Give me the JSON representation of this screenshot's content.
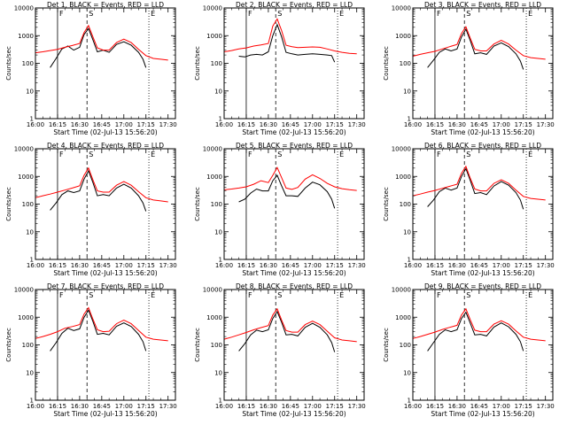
{
  "panel_title_suffix": ", BLACK = Events, RED = LLD",
  "x_label": "Start Time (02-Jul-13 15:56:20)",
  "y_label": "Counts/sec",
  "x_tick_labels": [
    "16:00",
    "16:15",
    "16:30",
    "16:45",
    "17:00",
    "17:15",
    "17:30"
  ],
  "y_tick_labels": [
    "1",
    "10",
    "100",
    "1000",
    "10000"
  ],
  "series_colors": {
    "events": "#000000",
    "lld": "#ff0000"
  },
  "chart_data": [
    {
      "type": "line",
      "title": "Det 1",
      "xlim": [
        "16:00",
        "17:35"
      ],
      "ylim": [
        1,
        10000
      ],
      "yscale": "log",
      "grid": false,
      "markers": {
        "F": "16:15",
        "S": "16:35",
        "E": "17:17"
      },
      "series": [
        {
          "x": [
            "16:10",
            "16:14",
            "16:18",
            "16:22",
            "16:26",
            "16:30",
            "16:33",
            "16:36",
            "16:39",
            "16:42",
            "16:46",
            "16:50",
            "16:55",
            "17:00",
            "17:05",
            "17:10",
            "17:13",
            "17:15"
          ],
          "values": [
            70,
            150,
            330,
            420,
            300,
            380,
            1100,
            1800,
            700,
            260,
            300,
            250,
            480,
            600,
            450,
            250,
            140,
            70
          ]
        },
        {
          "x": [
            "16:00",
            "16:05",
            "16:10",
            "16:15",
            "16:20",
            "16:25",
            "16:30",
            "16:33",
            "16:36",
            "16:39",
            "16:42",
            "16:46",
            "16:50",
            "16:55",
            "17:00",
            "17:05",
            "17:10",
            "17:15",
            "17:20",
            "17:25",
            "17:30"
          ],
          "values": [
            240,
            260,
            290,
            320,
            380,
            440,
            520,
            1300,
            2300,
            900,
            360,
            300,
            300,
            560,
            750,
            560,
            320,
            190,
            150,
            140,
            130
          ]
        }
      ]
    },
    {
      "type": "line",
      "title": "Det 2",
      "xlim": [
        "16:00",
        "17:35"
      ],
      "ylim": [
        1,
        10000
      ],
      "yscale": "log",
      "grid": false,
      "markers": {
        "F": "16:15",
        "S": "16:35",
        "E": "17:17"
      },
      "series": [
        {
          "x": [
            "16:10",
            "16:14",
            "16:18",
            "16:22",
            "16:26",
            "16:30",
            "16:33",
            "16:36",
            "16:39",
            "16:42",
            "16:46",
            "16:50",
            "16:55",
            "17:00",
            "17:05",
            "17:10",
            "17:13",
            "17:15"
          ],
          "values": [
            180,
            170,
            200,
            210,
            200,
            260,
            1000,
            2500,
            900,
            250,
            220,
            200,
            210,
            220,
            210,
            200,
            190,
            110
          ]
        },
        {
          "x": [
            "16:00",
            "16:05",
            "16:10",
            "16:15",
            "16:20",
            "16:25",
            "16:30",
            "16:33",
            "16:36",
            "16:39",
            "16:42",
            "16:46",
            "16:50",
            "16:55",
            "17:00",
            "17:05",
            "17:10",
            "17:15",
            "17:20",
            "17:25",
            "17:30"
          ],
          "values": [
            260,
            290,
            330,
            360,
            420,
            460,
            520,
            2200,
            4000,
            1500,
            450,
            400,
            370,
            380,
            390,
            380,
            330,
            280,
            250,
            230,
            220
          ]
        }
      ]
    },
    {
      "type": "line",
      "title": "Det 3",
      "xlim": [
        "16:00",
        "17:35"
      ],
      "ylim": [
        1,
        10000
      ],
      "yscale": "log",
      "grid": false,
      "markers": {
        "F": "16:15",
        "S": "16:35",
        "E": "17:17"
      },
      "series": [
        {
          "x": [
            "16:10",
            "16:14",
            "16:18",
            "16:22",
            "16:26",
            "16:30",
            "16:33",
            "16:36",
            "16:39",
            "16:42",
            "16:46",
            "16:50",
            "16:55",
            "17:00",
            "17:05",
            "17:10",
            "17:13",
            "17:15"
          ],
          "values": [
            70,
            130,
            250,
            330,
            280,
            330,
            900,
            1700,
            650,
            220,
            240,
            210,
            420,
            550,
            400,
            220,
            120,
            60
          ]
        },
        {
          "x": [
            "16:00",
            "16:05",
            "16:10",
            "16:15",
            "16:20",
            "16:25",
            "16:30",
            "16:33",
            "16:36",
            "16:39",
            "16:42",
            "16:46",
            "16:50",
            "16:55",
            "17:00",
            "17:05",
            "17:10",
            "17:15",
            "17:20",
            "17:25",
            "17:30"
          ],
          "values": [
            180,
            210,
            240,
            270,
            330,
            400,
            480,
            1200,
            2100,
            800,
            320,
            280,
            280,
            500,
            680,
            500,
            300,
            190,
            160,
            150,
            140
          ]
        }
      ]
    },
    {
      "type": "line",
      "title": "Det 4",
      "xlim": [
        "16:00",
        "17:35"
      ],
      "ylim": [
        1,
        10000
      ],
      "yscale": "log",
      "grid": false,
      "markers": {
        "F": "16:15",
        "S": "16:35",
        "E": "17:17"
      },
      "series": [
        {
          "x": [
            "16:10",
            "16:14",
            "16:18",
            "16:22",
            "16:26",
            "16:30",
            "16:33",
            "16:36",
            "16:39",
            "16:42",
            "16:46",
            "16:50",
            "16:55",
            "17:00",
            "17:05",
            "17:10",
            "17:13",
            "17:15"
          ],
          "values": [
            60,
            110,
            220,
            300,
            260,
            300,
            800,
            1600,
            600,
            200,
            220,
            200,
            380,
            520,
            380,
            200,
            110,
            55
          ]
        },
        {
          "x": [
            "16:00",
            "16:05",
            "16:10",
            "16:15",
            "16:20",
            "16:25",
            "16:30",
            "16:33",
            "16:36",
            "16:39",
            "16:42",
            "16:46",
            "16:50",
            "16:55",
            "17:00",
            "17:05",
            "17:10",
            "17:15",
            "17:20",
            "17:25",
            "17:30"
          ],
          "values": [
            170,
            200,
            230,
            270,
            320,
            380,
            460,
            1100,
            2000,
            750,
            300,
            270,
            270,
            480,
            650,
            480,
            280,
            170,
            140,
            130,
            120
          ]
        }
      ]
    },
    {
      "type": "line",
      "title": "Det 5",
      "xlim": [
        "16:00",
        "17:35"
      ],
      "ylim": [
        1,
        10000
      ],
      "yscale": "log",
      "grid": false,
      "markers": {
        "F": "16:15",
        "S": "16:35",
        "E": "17:17"
      },
      "series": [
        {
          "x": [
            "16:10",
            "16:14",
            "16:18",
            "16:22",
            "16:26",
            "16:30",
            "16:33",
            "16:36",
            "16:39",
            "16:42",
            "16:46",
            "16:50",
            "16:55",
            "17:00",
            "17:05",
            "17:10",
            "17:13",
            "17:15"
          ],
          "values": [
            120,
            150,
            250,
            350,
            300,
            300,
            700,
            1100,
            450,
            200,
            200,
            190,
            380,
            620,
            500,
            280,
            150,
            70
          ]
        },
        {
          "x": [
            "16:00",
            "16:05",
            "16:10",
            "16:15",
            "16:20",
            "16:25",
            "16:30",
            "16:33",
            "16:36",
            "16:39",
            "16:42",
            "16:46",
            "16:50",
            "16:55",
            "17:00",
            "17:05",
            "17:10",
            "17:15",
            "17:20",
            "17:25",
            "17:30"
          ],
          "values": [
            330,
            350,
            380,
            420,
            520,
            700,
            600,
            1100,
            2100,
            900,
            380,
            340,
            400,
            800,
            1150,
            850,
            560,
            420,
            360,
            330,
            310
          ]
        }
      ]
    },
    {
      "type": "line",
      "title": "Det 6",
      "xlim": [
        "16:00",
        "17:35"
      ],
      "ylim": [
        1,
        10000
      ],
      "yscale": "log",
      "grid": false,
      "markers": {
        "F": "16:15",
        "S": "16:35",
        "E": "17:17"
      },
      "series": [
        {
          "x": [
            "16:10",
            "16:14",
            "16:18",
            "16:22",
            "16:26",
            "16:30",
            "16:33",
            "16:36",
            "16:39",
            "16:42",
            "16:46",
            "16:50",
            "16:55",
            "17:00",
            "17:05",
            "17:10",
            "17:13",
            "17:15"
          ],
          "values": [
            80,
            140,
            280,
            380,
            320,
            380,
            1000,
            1900,
            700,
            240,
            260,
            220,
            450,
            650,
            480,
            260,
            140,
            65
          ]
        },
        {
          "x": [
            "16:00",
            "16:05",
            "16:10",
            "16:15",
            "16:20",
            "16:25",
            "16:30",
            "16:33",
            "16:36",
            "16:39",
            "16:42",
            "16:46",
            "16:50",
            "16:55",
            "17:00",
            "17:05",
            "17:10",
            "17:15",
            "17:20",
            "17:25",
            "17:30"
          ],
          "values": [
            200,
            230,
            270,
            310,
            370,
            440,
            520,
            1300,
            2300,
            850,
            350,
            300,
            300,
            560,
            760,
            560,
            320,
            190,
            160,
            150,
            140
          ]
        }
      ]
    },
    {
      "type": "line",
      "title": "Det 7",
      "xlim": [
        "16:00",
        "17:35"
      ],
      "ylim": [
        1,
        10000
      ],
      "yscale": "log",
      "grid": false,
      "markers": {
        "F": "16:15",
        "S": "16:35",
        "E": "17:17"
      },
      "series": [
        {
          "x": [
            "16:10",
            "16:14",
            "16:18",
            "16:22",
            "16:26",
            "16:30",
            "16:33",
            "16:36",
            "16:39",
            "16:42",
            "16:46",
            "16:50",
            "16:55",
            "17:00",
            "17:05",
            "17:10",
            "17:13",
            "17:15"
          ],
          "values": [
            60,
            120,
            260,
            400,
            330,
            380,
            1000,
            1800,
            700,
            240,
            260,
            230,
            470,
            620,
            460,
            240,
            130,
            60
          ]
        },
        {
          "x": [
            "16:00",
            "16:05",
            "16:10",
            "16:15",
            "16:20",
            "16:25",
            "16:30",
            "16:33",
            "16:36",
            "16:39",
            "16:42",
            "16:46",
            "16:50",
            "16:55",
            "17:00",
            "17:05",
            "17:10",
            "17:15",
            "17:20",
            "17:25",
            "17:30"
          ],
          "values": [
            170,
            200,
            240,
            300,
            400,
            460,
            540,
            1300,
            2200,
            850,
            350,
            300,
            310,
            580,
            780,
            580,
            330,
            190,
            160,
            150,
            140
          ]
        }
      ]
    },
    {
      "type": "line",
      "title": "Det 8",
      "xlim": [
        "16:00",
        "17:35"
      ],
      "ylim": [
        1,
        10000
      ],
      "yscale": "log",
      "grid": false,
      "markers": {
        "F": "16:15",
        "S": "16:35",
        "E": "17:17"
      },
      "series": [
        {
          "x": [
            "16:10",
            "16:14",
            "16:18",
            "16:22",
            "16:26",
            "16:30",
            "16:33",
            "16:36",
            "16:39",
            "16:42",
            "16:46",
            "16:50",
            "16:55",
            "17:00",
            "17:05",
            "17:10",
            "17:13",
            "17:15"
          ],
          "values": [
            60,
            110,
            230,
            340,
            300,
            350,
            900,
            1600,
            650,
            230,
            240,
            210,
            430,
            600,
            430,
            230,
            120,
            55
          ]
        },
        {
          "x": [
            "16:00",
            "16:05",
            "16:10",
            "16:15",
            "16:20",
            "16:25",
            "16:30",
            "16:33",
            "16:36",
            "16:39",
            "16:42",
            "16:46",
            "16:50",
            "16:55",
            "17:00",
            "17:05",
            "17:10",
            "17:15",
            "17:20",
            "17:25",
            "17:30"
          ],
          "values": [
            160,
            190,
            230,
            280,
            350,
            420,
            500,
            1200,
            2000,
            780,
            330,
            290,
            290,
            540,
            720,
            540,
            310,
            180,
            150,
            140,
            130
          ]
        }
      ]
    },
    {
      "type": "line",
      "title": "Det 9",
      "xlim": [
        "16:00",
        "17:35"
      ],
      "ylim": [
        1,
        10000
      ],
      "yscale": "log",
      "grid": false,
      "markers": {
        "F": "16:15",
        "S": "16:35",
        "E": "17:17"
      },
      "series": [
        {
          "x": [
            "16:10",
            "16:14",
            "16:18",
            "16:22",
            "16:26",
            "16:30",
            "16:33",
            "16:36",
            "16:39",
            "16:42",
            "16:46",
            "16:50",
            "16:55",
            "17:00",
            "17:05",
            "17:10",
            "17:13",
            "17:15"
          ],
          "values": [
            60,
            120,
            240,
            350,
            300,
            350,
            900,
            1500,
            600,
            230,
            240,
            210,
            440,
            620,
            450,
            240,
            130,
            60
          ]
        },
        {
          "x": [
            "16:00",
            "16:05",
            "16:10",
            "16:15",
            "16:20",
            "16:25",
            "16:30",
            "16:33",
            "16:36",
            "16:39",
            "16:42",
            "16:46",
            "16:50",
            "16:55",
            "17:00",
            "17:05",
            "17:10",
            "17:15",
            "17:20",
            "17:25",
            "17:30"
          ],
          "values": [
            170,
            200,
            240,
            290,
            360,
            430,
            510,
            1200,
            2000,
            800,
            340,
            300,
            300,
            560,
            740,
            560,
            320,
            190,
            160,
            150,
            140
          ]
        }
      ]
    }
  ]
}
